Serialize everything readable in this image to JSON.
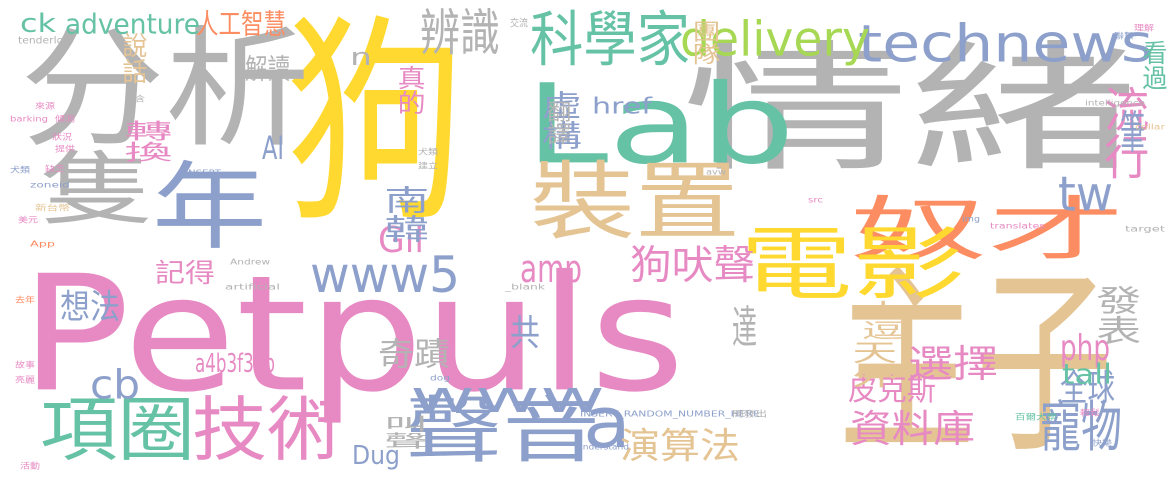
{
  "palette": {
    "pink": "#e78ac3",
    "yellow": "#ffd92f",
    "gray": "#b3b3b3",
    "tan": "#e5c494",
    "blue": "#8da0cb",
    "green": "#66c2a5",
    "orange": "#fc8d62",
    "lime": "#a6d854"
  },
  "words": [
    {
      "text": "Petpuls",
      "color": "pink"
    },
    {
      "text": "狗",
      "color": "yellow"
    },
    {
      "text": "情緒",
      "color": "gray"
    },
    {
      "text": "分析",
      "color": "gray"
    },
    {
      "text": "主子",
      "color": "tan"
    },
    {
      "text": "Lab",
      "color": "green"
    },
    {
      "text": "裝置",
      "color": "tan"
    },
    {
      "text": "奴才",
      "color": "orange"
    },
    {
      "text": "電影",
      "color": "yellow"
    },
    {
      "text": "隻",
      "color": "gray"
    },
    {
      "text": "年",
      "color": "blue"
    },
    {
      "text": "technews",
      "color": "blue"
    },
    {
      "text": "科學家",
      "color": "green"
    },
    {
      "text": "聲音",
      "color": "blue"
    },
    {
      "text": "項圈",
      "color": "green"
    },
    {
      "text": "技術",
      "color": "pink"
    },
    {
      "text": "a",
      "color": "blue"
    },
    {
      "text": "www5",
      "color": "blue"
    },
    {
      "text": "delivery",
      "color": "lime"
    },
    {
      "text": "寵物",
      "color": "blue"
    },
    {
      "text": "www",
      "color": "blue"
    },
    {
      "text": "tw",
      "color": "blue"
    },
    {
      "text": "辨識",
      "color": "gray"
    },
    {
      "text": "狗吠聲",
      "color": "pink"
    },
    {
      "text": "資料庫",
      "color": "pink"
    },
    {
      "text": "選擇",
      "color": "pink"
    },
    {
      "text": "全球",
      "color": "blue"
    },
    {
      "text": "php",
      "color": "pink"
    },
    {
      "text": "amp",
      "color": "pink"
    },
    {
      "text": "演算法",
      "color": "tan"
    },
    {
      "text": "流行",
      "color": "pink"
    },
    {
      "text": "筆",
      "color": "blue"
    },
    {
      "text": "cb",
      "color": "blue"
    },
    {
      "text": "adventure",
      "color": "green"
    },
    {
      "text": "人工智慧",
      "color": "orange"
    },
    {
      "text": "ck",
      "color": "green"
    },
    {
      "text": "Gil",
      "color": "pink"
    },
    {
      "text": "共",
      "color": "blue"
    },
    {
      "text": "奇蹟",
      "color": "gray"
    },
    {
      "text": "皮克斯",
      "color": "pink"
    },
    {
      "text": "發表",
      "color": "gray"
    },
    {
      "text": "想法",
      "color": "blue"
    },
    {
      "text": "記得",
      "color": "pink"
    },
    {
      "text": "轉換",
      "color": "pink"
    },
    {
      "text": "說話",
      "color": "tan"
    },
    {
      "text": "解讀",
      "color": "gray"
    },
    {
      "text": "虛構",
      "color": "blue"
    },
    {
      "text": "真的",
      "color": "pink"
    },
    {
      "text": "翻譯",
      "color": "gray"
    },
    {
      "text": "團隊",
      "color": "tan"
    },
    {
      "text": "看過",
      "color": "green"
    },
    {
      "text": "南韓",
      "color": "blue"
    },
    {
      "text": "a4b3f35b",
      "color": "pink"
    },
    {
      "text": "天外",
      "color": "tan"
    },
    {
      "text": "小逗",
      "color": "tan"
    },
    {
      "text": "tall",
      "color": "green"
    },
    {
      "text": "Dug",
      "color": "blue"
    },
    {
      "text": "達",
      "color": "gray"
    },
    {
      "text": "AI",
      "color": "blue"
    },
    {
      "text": "href",
      "color": "blue"
    },
    {
      "text": "n",
      "color": "gray"
    },
    {
      "text": "叫聲",
      "color": "gray"
    },
    {
      "text": "tenderloin",
      "color": "gray"
    },
    {
      "text": "交流",
      "color": "gray"
    },
    {
      "text": "barking",
      "color": "pink"
    },
    {
      "text": "來源",
      "color": "pink"
    },
    {
      "text": "傾測",
      "color": "pink"
    },
    {
      "text": "提供",
      "color": "pink"
    },
    {
      "text": "包含",
      "color": "gray"
    },
    {
      "text": "狀況",
      "color": "pink"
    },
    {
      "text": "缺乏",
      "color": "pink"
    },
    {
      "text": "犬類",
      "color": "blue"
    },
    {
      "text": "zoneid",
      "color": "blue"
    },
    {
      "text": "新台幣",
      "color": "tan"
    },
    {
      "text": "美元",
      "color": "pink"
    },
    {
      "text": "App",
      "color": "orange"
    },
    {
      "text": "INSERT",
      "color": "blue"
    },
    {
      "text": "犬類",
      "color": "gray"
    },
    {
      "text": "建立",
      "color": "gray"
    },
    {
      "text": "artificial",
      "color": "gray"
    },
    {
      "text": "Andrew",
      "color": "gray"
    },
    {
      "text": "_blank",
      "color": "gray"
    },
    {
      "text": "INSERT_RANDOM_NUMBER_HERE",
      "color": "blue"
    },
    {
      "text": "understand",
      "color": "blue"
    },
    {
      "text": "dog",
      "color": "blue"
    },
    {
      "text": "百爾大學",
      "color": "green"
    },
    {
      "text": "開發出",
      "color": "gray"
    },
    {
      "text": "intelligence",
      "color": "gray"
    },
    {
      "text": "translates",
      "color": "pink"
    },
    {
      "text": "target",
      "color": "gray"
    },
    {
      "text": "collar",
      "color": "tan"
    },
    {
      "text": "img",
      "color": "blue"
    },
    {
      "text": "src",
      "color": "pink"
    },
    {
      "text": "avw",
      "color": "gray"
    },
    {
      "text": "去年",
      "color": "orange"
    },
    {
      "text": "故事",
      "color": "pink"
    },
    {
      "text": "亮麗",
      "color": "pink"
    },
    {
      "text": "活動",
      "color": "pink"
    },
    {
      "text": "理解",
      "color": "pink"
    },
    {
      "text": "聯繫",
      "color": "blue"
    },
    {
      "text": "輕鬆",
      "color": "pink"
    },
    {
      "text": "快樂",
      "color": "blue"
    }
  ]
}
